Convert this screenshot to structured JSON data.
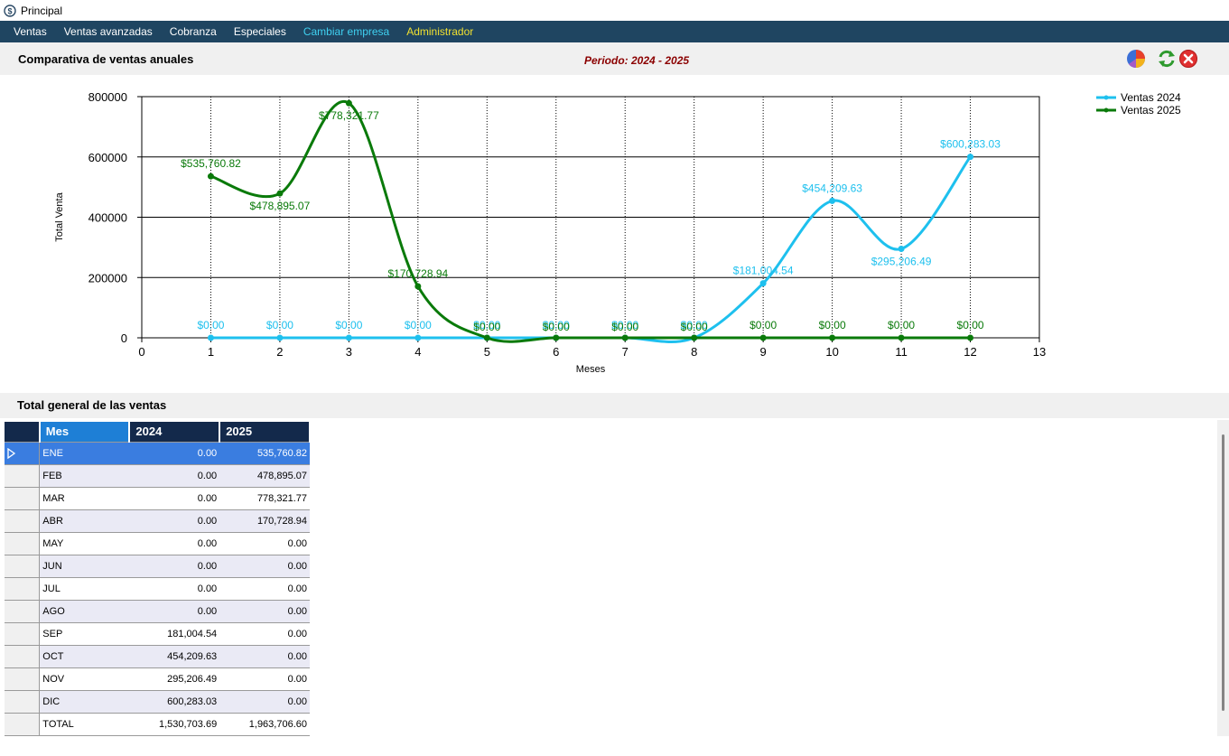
{
  "window": {
    "title": "Principal"
  },
  "menu": [
    {
      "label": "Ventas",
      "style": "normal"
    },
    {
      "label": "Ventas avanzadas",
      "style": "normal"
    },
    {
      "label": "Cobranza",
      "style": "normal"
    },
    {
      "label": "Especiales",
      "style": "normal"
    },
    {
      "label": "Cambiar empresa",
      "style": "cyan"
    },
    {
      "label": "Administrador",
      "style": "yellow"
    }
  ],
  "header": {
    "title": "Comparativa de ventas anuales",
    "period": "Periodo: 2024 - 2025",
    "tools": [
      "pie-chart-icon",
      "refresh-icon",
      "close-icon"
    ]
  },
  "colors": {
    "series_2024": "#1ec0ee",
    "series_2025": "#0a7a0a",
    "menubar": "#1f4561",
    "period": "#8b0000"
  },
  "chart_data": {
    "type": "line",
    "xlabel": "Meses",
    "ylabel": "Total Venta",
    "xlim": [
      0,
      13
    ],
    "ylim": [
      0,
      800000
    ],
    "x_ticks": [
      0,
      1,
      2,
      3,
      4,
      5,
      6,
      7,
      8,
      9,
      10,
      11,
      12,
      13
    ],
    "y_ticks": [
      0,
      200000,
      400000,
      600000,
      800000
    ],
    "y_tick_labels": [
      "0",
      "200000",
      "400000",
      "600000",
      "800000"
    ],
    "grid": true,
    "legend_position": "top-right",
    "x": [
      1,
      2,
      3,
      4,
      5,
      6,
      7,
      8,
      9,
      10,
      11,
      12
    ],
    "series": [
      {
        "name": "Ventas 2024",
        "color": "#1ec0ee",
        "values": [
          0,
          0,
          0,
          0,
          0,
          0,
          0,
          0,
          181004.54,
          454209.63,
          295206.49,
          600283.03
        ],
        "labels": [
          "$0.00",
          "$0.00",
          "$0.00",
          "$0.00",
          "$0.00",
          "$0.00",
          "$0.00",
          "$0.00",
          "$181,004.54",
          "$454,209.63",
          "$295,206.49",
          "$600,283.03"
        ]
      },
      {
        "name": "Ventas 2025",
        "color": "#0a7a0a",
        "values": [
          535760.82,
          478895.07,
          778321.77,
          170728.94,
          0,
          0,
          0,
          0,
          0,
          0,
          0,
          0
        ],
        "labels": [
          "$535,760.82",
          "$478,895.07",
          "$778,321.77",
          "$170,728.94",
          "$0.00",
          "$0.00",
          "$0.00",
          "$0.00",
          "$0.00",
          "$0.00",
          "$0.00",
          "$0.00"
        ]
      }
    ]
  },
  "totals": {
    "title": "Total general de las ventas",
    "columns": [
      "Mes",
      "2024",
      "2025"
    ],
    "selected_index": 0,
    "rows": [
      {
        "mes": "ENE",
        "y2024": "0.00",
        "y2025": "535,760.82"
      },
      {
        "mes": "FEB",
        "y2024": "0.00",
        "y2025": "478,895.07"
      },
      {
        "mes": "MAR",
        "y2024": "0.00",
        "y2025": "778,321.77"
      },
      {
        "mes": "ABR",
        "y2024": "0.00",
        "y2025": "170,728.94"
      },
      {
        "mes": "MAY",
        "y2024": "0.00",
        "y2025": "0.00"
      },
      {
        "mes": "JUN",
        "y2024": "0.00",
        "y2025": "0.00"
      },
      {
        "mes": "JUL",
        "y2024": "0.00",
        "y2025": "0.00"
      },
      {
        "mes": "AGO",
        "y2024": "0.00",
        "y2025": "0.00"
      },
      {
        "mes": "SEP",
        "y2024": "181,004.54",
        "y2025": "0.00"
      },
      {
        "mes": "OCT",
        "y2024": "454,209.63",
        "y2025": "0.00"
      },
      {
        "mes": "NOV",
        "y2024": "295,206.49",
        "y2025": "0.00"
      },
      {
        "mes": "DIC",
        "y2024": "600,283.03",
        "y2025": "0.00"
      },
      {
        "mes": "TOTAL",
        "y2024": "1,530,703.69",
        "y2025": "1,963,706.60"
      }
    ]
  }
}
